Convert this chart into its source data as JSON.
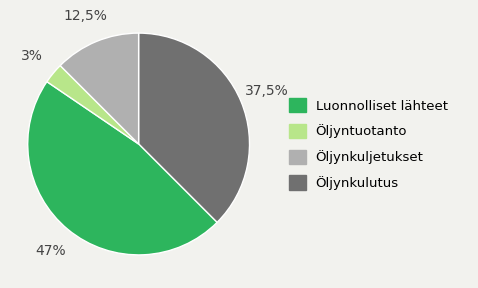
{
  "slices": [
    37.5,
    47,
    3,
    12.5
  ],
  "labels": [
    "Luonnolliset lähteet",
    "Öljyntuotanto",
    "Öljynkuljetukset",
    "Öljynkulutus"
  ],
  "slice_labels": [
    "Öljynkulutus",
    "Luonnolliset lähteet",
    "Öljyntuotanto",
    "Öljynkuljetukset"
  ],
  "colors": [
    "#707070",
    "#2db55d",
    "#b8e68a",
    "#b0b0b0"
  ],
  "legend_colors": [
    "#2db55d",
    "#b8e68a",
    "#b0b0b0",
    "#707070"
  ],
  "pct_labels": [
    "37,5%",
    "47%",
    "3%",
    "12,5%"
  ],
  "startangle": 90,
  "background_color": "#f2f2ee",
  "legend_fontsize": 9.5,
  "pct_fontsize": 10,
  "label_dist": 1.25
}
